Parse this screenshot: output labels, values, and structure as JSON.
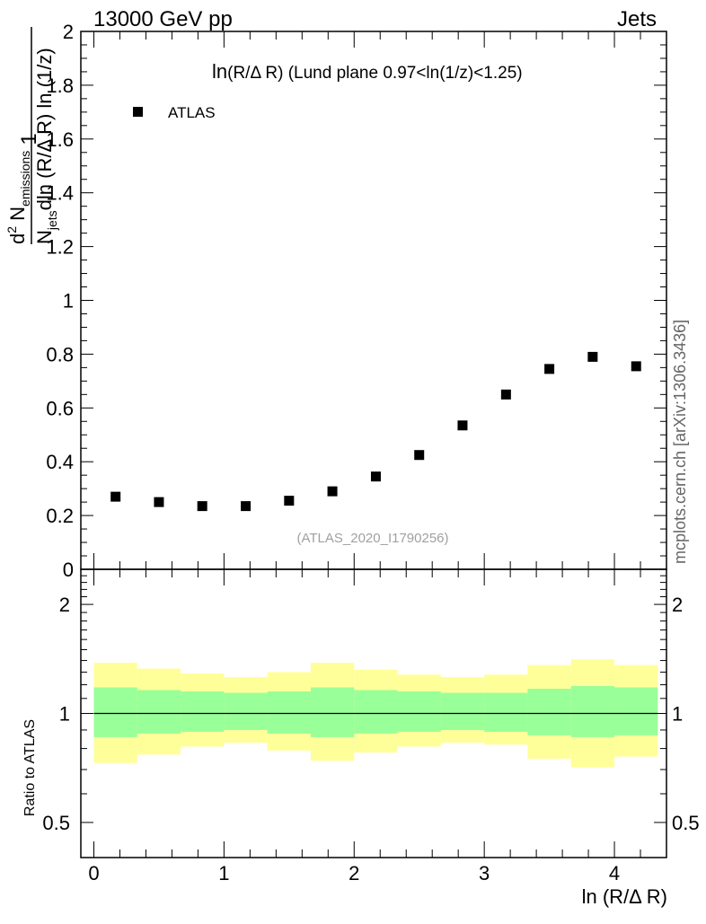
{
  "header": {
    "left": "13000 GeV pp",
    "right": "Jets"
  },
  "side_note": "mcplots.cern.ch [arXiv:1306.3436]",
  "colors": {
    "marker": "#000000",
    "band_inner": "#99ff99",
    "band_outer": "#ffff99",
    "analysis_label": "#a0a0a0",
    "side_note": "#666666"
  },
  "chart_data": [
    {
      "type": "scatter",
      "title_main": "ln",
      "title_rest": "(R/Δ R) (Lund plane 0.97<ln(1/z)<1.25)",
      "legend": [
        "ATLAS"
      ],
      "legend_position": "top-left",
      "analysis_label": "(ATLAS_2020_I1790256)",
      "ylabel": "1/N_jets d²N_emissions / dln(R/ΔR) ln(1/z)",
      "ylabel_parts": {
        "num_main": "d",
        "num_sup": "2",
        "num_N": " N",
        "num_sub": "emissions",
        "one": "1",
        "den_N": "N",
        "den_sub": "jets",
        "den_rest": "dln (R/Δ R) ln (1/z)"
      },
      "xlim": [
        -0.1,
        4.4
      ],
      "ylim": [
        0,
        2
      ],
      "yticks": [
        0,
        0.2,
        0.4,
        0.6,
        0.8,
        1,
        1.2,
        1.4,
        1.6,
        1.8,
        2
      ],
      "ytick_labels": [
        "0",
        "0.2",
        "0.4",
        "0.6",
        "0.8",
        "1",
        "1.2",
        "1.4",
        "1.6",
        "1.8",
        "2"
      ],
      "series": [
        {
          "name": "ATLAS",
          "x": [
            0.167,
            0.5,
            0.833,
            1.167,
            1.5,
            1.833,
            2.167,
            2.5,
            2.833,
            3.167,
            3.5,
            3.833,
            4.167
          ],
          "y": [
            0.27,
            0.25,
            0.235,
            0.235,
            0.255,
            0.29,
            0.345,
            0.425,
            0.535,
            0.65,
            0.745,
            0.79,
            0.755
          ]
        }
      ]
    },
    {
      "type": "area",
      "ylabel": "Ratio to ATLAS",
      "xlabel": "ln (R/Δ R)",
      "yscale": "log",
      "ylim": [
        0.4,
        2.5
      ],
      "xlim": [
        -0.1,
        4.4
      ],
      "yticks": [
        0.5,
        1,
        2
      ],
      "ytick_labels": [
        "0.5",
        "1",
        "2"
      ],
      "xticks": [
        0,
        1,
        2,
        3,
        4
      ],
      "xtick_labels": [
        "0",
        "1",
        "2",
        "3",
        "4"
      ],
      "reference": 1,
      "bins": [
        0,
        0.333,
        0.667,
        1.0,
        1.333,
        1.667,
        2.0,
        2.333,
        2.667,
        3.0,
        3.333,
        3.667,
        4.0,
        4.333
      ],
      "inner_band": {
        "upper": [
          1.18,
          1.16,
          1.15,
          1.14,
          1.15,
          1.18,
          1.16,
          1.15,
          1.14,
          1.14,
          1.17,
          1.19,
          1.18
        ],
        "lower": [
          0.86,
          0.88,
          0.89,
          0.9,
          0.88,
          0.86,
          0.88,
          0.89,
          0.9,
          0.89,
          0.87,
          0.86,
          0.87
        ]
      },
      "outer_band": {
        "upper": [
          1.38,
          1.33,
          1.29,
          1.26,
          1.3,
          1.38,
          1.32,
          1.28,
          1.26,
          1.28,
          1.36,
          1.41,
          1.36
        ],
        "lower": [
          0.73,
          0.77,
          0.81,
          0.83,
          0.79,
          0.74,
          0.78,
          0.81,
          0.83,
          0.82,
          0.75,
          0.71,
          0.76
        ]
      }
    }
  ]
}
